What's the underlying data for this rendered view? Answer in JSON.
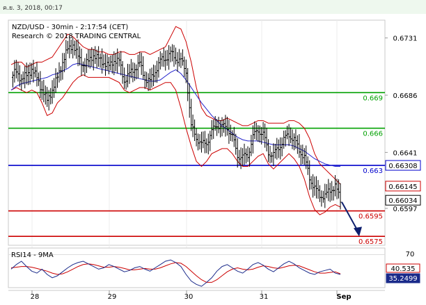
{
  "header": {
    "timestamp": "ค.ย. 3, 2018, 00:17"
  },
  "chart_data": {
    "type": "candlestick",
    "title": "NZD/USD - 30min - 2:17:54 (CET)",
    "subtitle": "Research © 2018 TRADING CENTRAL",
    "y_ticks": [
      "0.6731",
      "0.6686",
      "0.6641",
      "0.6597"
    ],
    "ylim": [
      0.6568,
      0.6745
    ],
    "x_ticks": [
      "28",
      "29",
      "30",
      "31",
      "Sep"
    ],
    "levels": [
      {
        "label": "0.669",
        "value": 0.6688,
        "color": "#00a000"
      },
      {
        "label": "0.666",
        "value": 0.666,
        "color": "#00a000"
      },
      {
        "label": "0.663",
        "value": 0.66308,
        "color": "#0000cc"
      },
      {
        "label": "0.6595",
        "value": 0.6595,
        "color": "#cc0000"
      },
      {
        "label": "0.6575",
        "value": 0.6575,
        "color": "#cc0000"
      }
    ],
    "price_badges": [
      {
        "label": "0.66308",
        "value": 0.66308,
        "color": "#0000cc"
      },
      {
        "label": "0.66145",
        "value": 0.66145,
        "color": "#cc0000"
      },
      {
        "label": "0.66034",
        "value": 0.66034,
        "color": "#000000"
      }
    ],
    "price_path": [
      0.67,
      0.6705,
      0.6698,
      0.6702,
      0.6706,
      0.67,
      0.669,
      0.6682,
      0.669,
      0.67,
      0.6712,
      0.6722,
      0.6726,
      0.6716,
      0.671,
      0.6712,
      0.6718,
      0.6714,
      0.6712,
      0.6708,
      0.6714,
      0.6712,
      0.6698,
      0.6702,
      0.6708,
      0.671,
      0.67,
      0.6696,
      0.6706,
      0.6712,
      0.6716,
      0.6718,
      0.6716,
      0.6712,
      0.6706,
      0.666,
      0.6654,
      0.6646,
      0.665,
      0.6656,
      0.6664,
      0.666,
      0.6662,
      0.6652,
      0.664,
      0.6636,
      0.664,
      0.6652,
      0.666,
      0.6654,
      0.6642,
      0.6638,
      0.6646,
      0.665,
      0.6656,
      0.665,
      0.6644,
      0.6636,
      0.6622,
      0.6612,
      0.6608,
      0.6606,
      0.6612,
      0.6614,
      0.6604
    ],
    "sma": [
      0.669,
      0.6693,
      0.6695,
      0.6696,
      0.6697,
      0.6698,
      0.6699,
      0.67,
      0.6702,
      0.6703,
      0.6705,
      0.6707,
      0.671,
      0.6711,
      0.671,
      0.6709,
      0.6708,
      0.6707,
      0.6706,
      0.6705,
      0.6704,
      0.6703,
      0.6702,
      0.6701,
      0.67,
      0.6699,
      0.6698,
      0.6697,
      0.6697,
      0.6698,
      0.6701,
      0.6704,
      0.6706,
      0.6703,
      0.6698,
      0.6692,
      0.6686,
      0.668,
      0.6675,
      0.667,
      0.6666,
      0.6662,
      0.6659,
      0.6656,
      0.6653,
      0.6651,
      0.665,
      0.665,
      0.665,
      0.6649,
      0.6648,
      0.6647,
      0.6647,
      0.6647,
      0.6647,
      0.6646,
      0.6644,
      0.6642,
      0.6639,
      0.6636,
      0.6634,
      0.6632,
      0.6631,
      0.663,
      0.663
    ],
    "bb_upper": [
      0.671,
      0.6712,
      0.6712,
      0.6708,
      0.671,
      0.6712,
      0.6712,
      0.6714,
      0.6716,
      0.6722,
      0.6728,
      0.6734,
      0.6732,
      0.6728,
      0.6724,
      0.6722,
      0.6722,
      0.672,
      0.672,
      0.6718,
      0.6718,
      0.672,
      0.672,
      0.6718,
      0.6718,
      0.672,
      0.672,
      0.6718,
      0.672,
      0.6722,
      0.6724,
      0.6732,
      0.674,
      0.6738,
      0.6728,
      0.6712,
      0.6692,
      0.6676,
      0.667,
      0.6668,
      0.6666,
      0.6666,
      0.6668,
      0.6666,
      0.6664,
      0.6662,
      0.6662,
      0.6664,
      0.6666,
      0.6666,
      0.6664,
      0.6664,
      0.6664,
      0.6664,
      0.6666,
      0.6666,
      0.6664,
      0.666,
      0.6652,
      0.664,
      0.6632,
      0.6628,
      0.6624,
      0.662,
      0.6616
    ],
    "bb_lower": [
      0.669,
      0.6692,
      0.669,
      0.6688,
      0.669,
      0.6688,
      0.668,
      0.667,
      0.6672,
      0.668,
      0.6684,
      0.669,
      0.6696,
      0.67,
      0.6702,
      0.67,
      0.67,
      0.67,
      0.67,
      0.67,
      0.6698,
      0.6696,
      0.669,
      0.6688,
      0.669,
      0.6692,
      0.6692,
      0.669,
      0.6692,
      0.6694,
      0.6696,
      0.6696,
      0.669,
      0.6676,
      0.666,
      0.6646,
      0.6634,
      0.663,
      0.6634,
      0.664,
      0.6642,
      0.6644,
      0.6644,
      0.664,
      0.6634,
      0.663,
      0.663,
      0.6634,
      0.6638,
      0.664,
      0.6632,
      0.6628,
      0.6632,
      0.6636,
      0.664,
      0.6636,
      0.663,
      0.662,
      0.6606,
      0.6596,
      0.6592,
      0.6594,
      0.6598,
      0.66,
      0.6598
    ],
    "forecast": {
      "from": 0.6602,
      "to": 0.6576
    },
    "rsi": {
      "label": "RSI14 - 9MA",
      "level_tick": "70",
      "ylim": [
        20,
        80
      ],
      "rsi_badge": "40.535",
      "ma_badge": "35.2499",
      "rsi_values": [
        48,
        55,
        60,
        52,
        45,
        42,
        48,
        40,
        35,
        38,
        44,
        50,
        55,
        58,
        60,
        56,
        52,
        48,
        50,
        55,
        52,
        48,
        44,
        46,
        50,
        52,
        48,
        45,
        50,
        55,
        60,
        62,
        58,
        52,
        40,
        30,
        25,
        22,
        28,
        35,
        45,
        52,
        55,
        50,
        45,
        42,
        48,
        55,
        58,
        54,
        48,
        44,
        50,
        56,
        60,
        56,
        50,
        46,
        42,
        40,
        44,
        46,
        48,
        42,
        40
      ],
      "ma_values": [
        50,
        51,
        52,
        52,
        51,
        49,
        47,
        45,
        42,
        40,
        41,
        44,
        48,
        52,
        55,
        56,
        55,
        53,
        51,
        51,
        52,
        51,
        49,
        47,
        47,
        48,
        49,
        48,
        48,
        50,
        53,
        56,
        58,
        57,
        52,
        45,
        38,
        32,
        28,
        28,
        32,
        38,
        44,
        48,
        50,
        48,
        47,
        48,
        51,
        53,
        52,
        50,
        49,
        51,
        53,
        54,
        53,
        50,
        47,
        44,
        42,
        42,
        43,
        44,
        41
      ]
    }
  }
}
